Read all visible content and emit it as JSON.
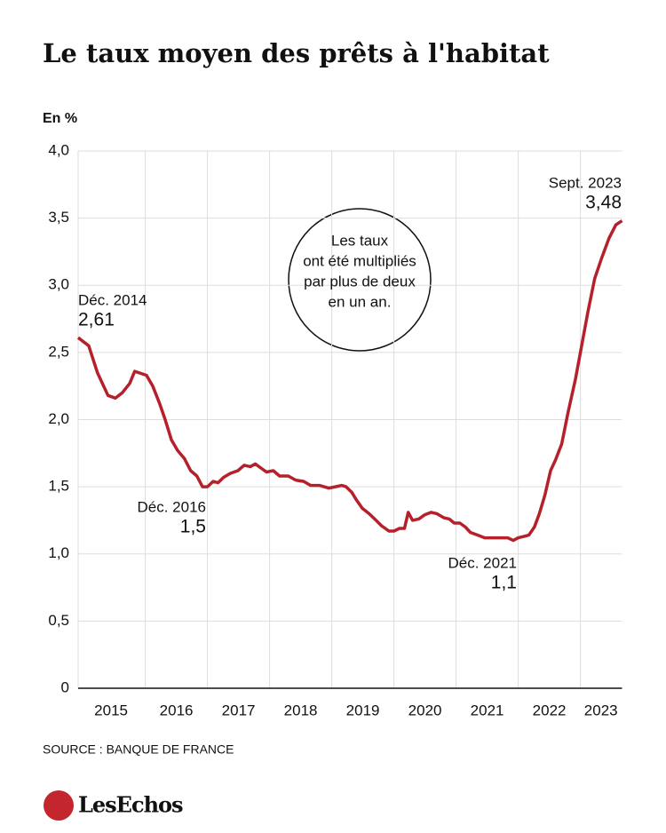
{
  "chart_data": {
    "type": "line",
    "title": "Le taux moyen des prêts à l'habitat",
    "y_label": "En %",
    "source": "SOURCE : BANQUE DE FRANCE",
    "brand": "LesEchos",
    "bubble": [
      "Les taux",
      "ont été multipliés",
      "par plus de deux",
      "en un an."
    ],
    "annotations": [
      {
        "label": "Déc. 2014",
        "value_label": "2,61"
      },
      {
        "label": "Déc. 2016",
        "value_label": "1,5"
      },
      {
        "label": "Déc. 2021",
        "value_label": "1,1"
      },
      {
        "label": "Sept. 2023",
        "value_label": "3,48"
      }
    ],
    "x": [
      2014.92,
      2015.09,
      2015.23,
      2015.4,
      2015.52,
      2015.63,
      2015.75,
      2015.83,
      2016.02,
      2016.12,
      2016.23,
      2016.32,
      2016.42,
      2016.52,
      2016.63,
      2016.73,
      2016.83,
      2016.92,
      2017.0,
      2017.09,
      2017.17,
      2017.26,
      2017.37,
      2017.49,
      2017.59,
      2017.69,
      2017.77,
      2017.86,
      2017.95,
      2018.06,
      2018.16,
      2018.3,
      2018.42,
      2018.55,
      2018.66,
      2018.8,
      2018.95,
      2019.06,
      2019.16,
      2019.23,
      2019.32,
      2019.4,
      2019.49,
      2019.6,
      2019.69,
      2019.8,
      2019.92,
      2020.0,
      2020.09,
      2020.17,
      2020.23,
      2020.3,
      2020.4,
      2020.49,
      2020.6,
      2020.69,
      2020.8,
      2020.89,
      2020.97,
      2021.06,
      2021.15,
      2021.23,
      2021.35,
      2021.46,
      2021.6,
      2021.74,
      2021.83,
      2021.92,
      2022.0,
      2022.09,
      2022.17,
      2022.26,
      2022.34,
      2022.43,
      2022.52,
      2022.6,
      2022.7,
      2022.8,
      2022.92,
      2023.0,
      2023.12,
      2023.23,
      2023.34,
      2023.46,
      2023.57,
      2023.67
    ],
    "series": [
      {
        "name": "Taux moyen",
        "color": "#b5202a",
        "values": [
          2.61,
          2.55,
          2.35,
          2.18,
          2.16,
          2.2,
          2.27,
          2.36,
          2.33,
          2.25,
          2.12,
          2.0,
          1.85,
          1.77,
          1.71,
          1.62,
          1.58,
          1.5,
          1.5,
          1.54,
          1.53,
          1.57,
          1.6,
          1.62,
          1.66,
          1.65,
          1.67,
          1.64,
          1.61,
          1.62,
          1.58,
          1.58,
          1.55,
          1.54,
          1.51,
          1.51,
          1.49,
          1.5,
          1.51,
          1.5,
          1.46,
          1.4,
          1.34,
          1.3,
          1.26,
          1.21,
          1.17,
          1.17,
          1.19,
          1.19,
          1.31,
          1.25,
          1.26,
          1.29,
          1.31,
          1.3,
          1.27,
          1.26,
          1.23,
          1.23,
          1.2,
          1.16,
          1.14,
          1.12,
          1.12,
          1.12,
          1.12,
          1.1,
          1.12,
          1.13,
          1.14,
          1.2,
          1.3,
          1.44,
          1.62,
          1.7,
          1.82,
          2.05,
          2.3,
          2.5,
          2.8,
          3.05,
          3.2,
          3.35,
          3.45,
          3.48
        ]
      }
    ],
    "xlim": [
      2014.92,
      2023.67
    ],
    "xticks": [
      {
        "value": 2015.45,
        "label": "2015"
      },
      {
        "value": 2016.5,
        "label": "2016"
      },
      {
        "value": 2017.5,
        "label": "2017"
      },
      {
        "value": 2018.5,
        "label": "2018"
      },
      {
        "value": 2019.5,
        "label": "2019"
      },
      {
        "value": 2020.5,
        "label": "2020"
      },
      {
        "value": 2021.5,
        "label": "2021"
      },
      {
        "value": 2022.5,
        "label": "2022"
      },
      {
        "value": 2023.33,
        "label": "2023"
      }
    ],
    "xgrid": [
      2016,
      2017,
      2018,
      2019,
      2020,
      2021,
      2022,
      2023
    ],
    "ylim": [
      0,
      4
    ],
    "yticks": [
      0,
      {
        "value": 0.5,
        "label": "0,5"
      },
      {
        "value": 1,
        "label": "1,0"
      },
      {
        "value": 1.5,
        "label": "1,5"
      },
      {
        "value": 2,
        "label": "2,0"
      },
      {
        "value": 2.5,
        "label": "2,5"
      },
      {
        "value": 3,
        "label": "3,0"
      },
      {
        "value": 3.5,
        "label": "3,5"
      },
      {
        "value": 4,
        "label": "4,0"
      }
    ],
    "grid": true
  }
}
